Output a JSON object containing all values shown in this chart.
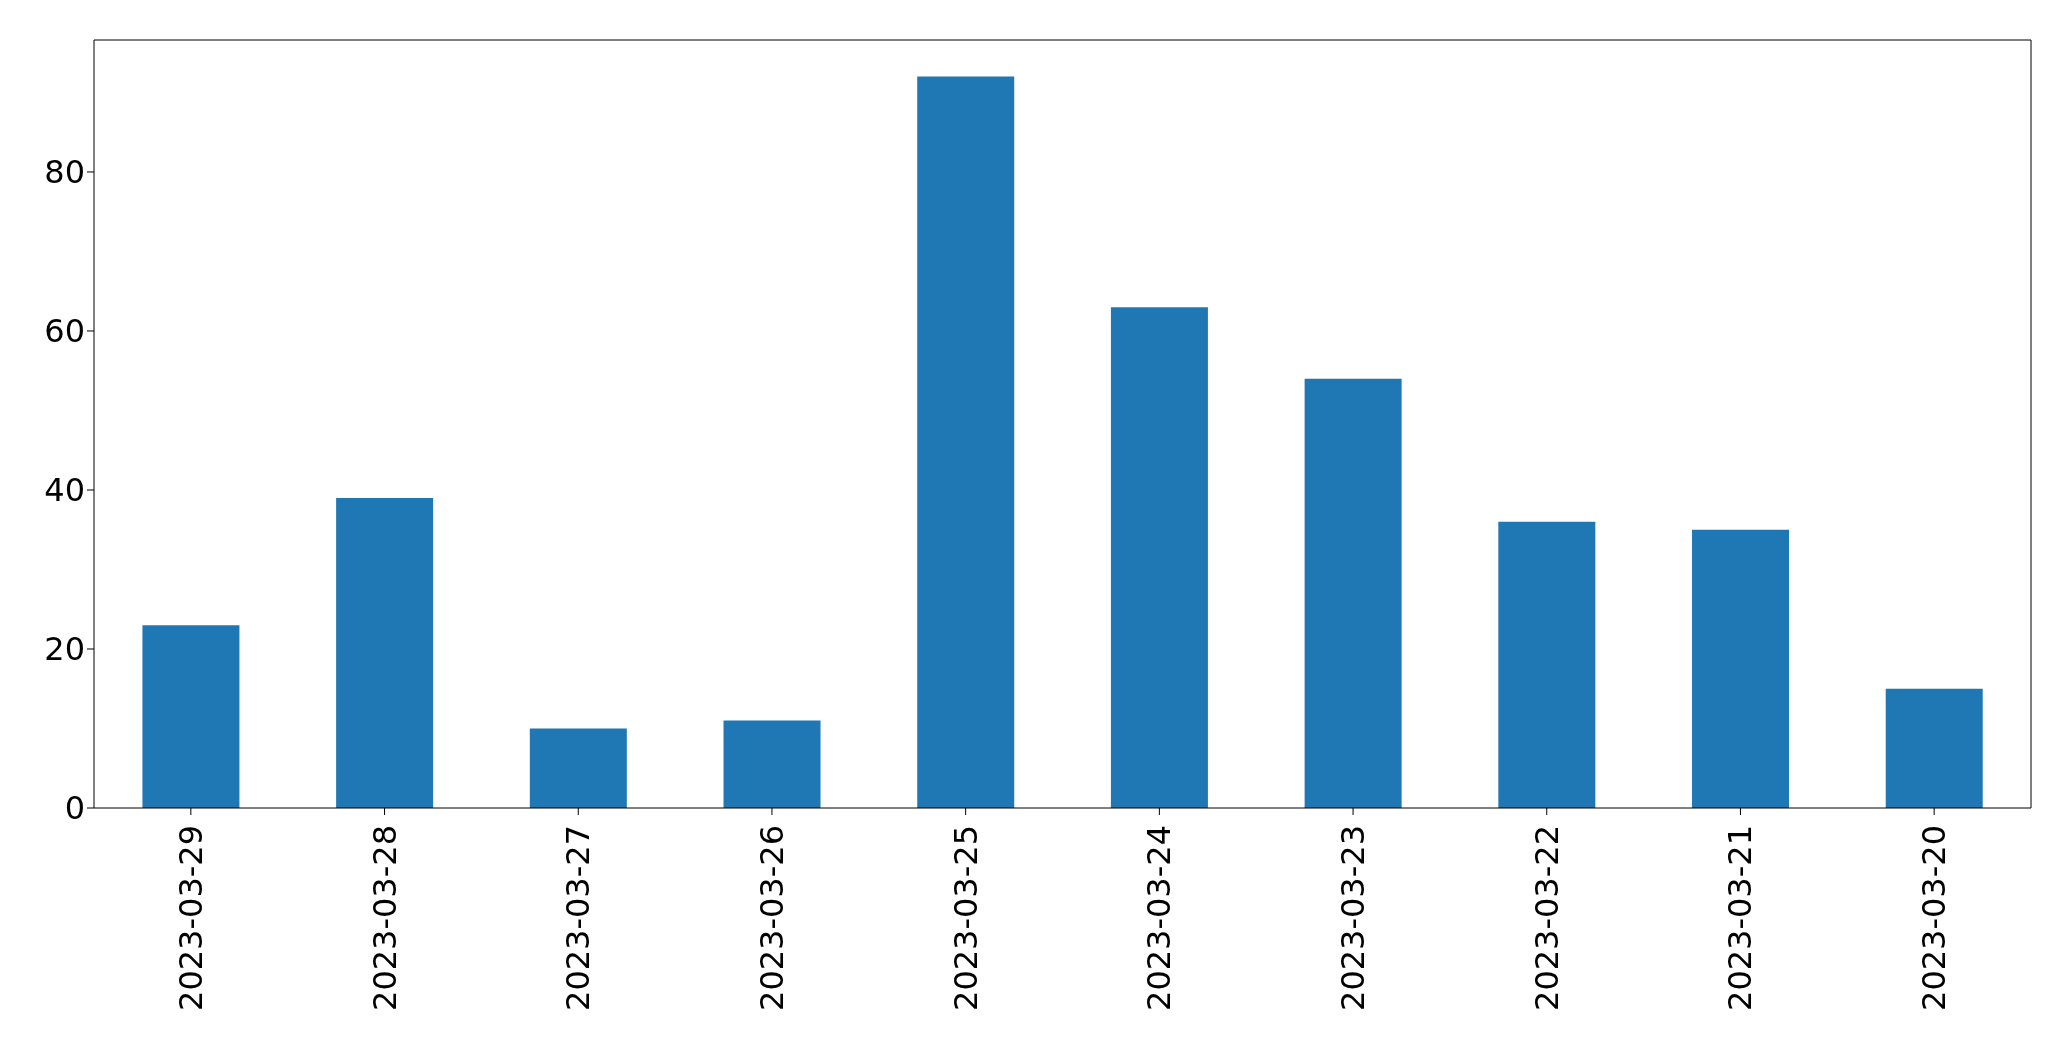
{
  "chart_data": {
    "type": "bar",
    "categories": [
      "2023-03-29",
      "2023-03-28",
      "2023-03-27",
      "2023-03-26",
      "2023-03-25",
      "2023-03-24",
      "2023-03-23",
      "2023-03-22",
      "2023-03-21",
      "2023-03-20"
    ],
    "values": [
      23,
      39,
      10,
      11,
      92,
      63,
      54,
      36,
      35,
      15
    ],
    "color": "#1f77b4",
    "ylim": [
      0,
      96.6
    ],
    "yticks": [
      0,
      20,
      40,
      60,
      80
    ]
  }
}
